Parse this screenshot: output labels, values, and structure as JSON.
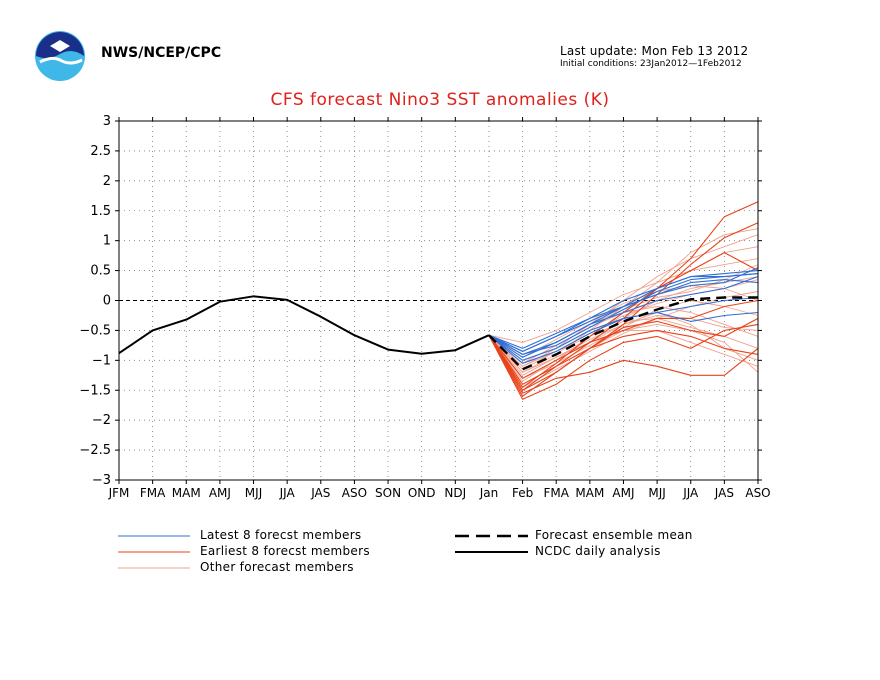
{
  "header": {
    "agency": "NWS/NCEP/CPC",
    "last_update": "Last update: Mon Feb 13 2012",
    "initial_conditions": "Initial conditions: 23Jan2012—1Feb2012",
    "logo_text": "NOAA"
  },
  "colors": {
    "title": "#e0201a",
    "latest": "#2f6fd6",
    "earliest": "#e8431a",
    "other": "#f0a28e",
    "analysis": "#000000"
  },
  "chart_data": {
    "type": "line",
    "title": "CFS forecast Nino3 SST anomalies (K)",
    "categories": [
      "JFM",
      "FMA",
      "MAM",
      "AMJ",
      "MJJ",
      "JJA",
      "JAS",
      "ASO",
      "SON",
      "OND",
      "NDJ",
      "Jan",
      "Feb",
      "FMA",
      "MAM",
      "AMJ",
      "MJJ",
      "JJA",
      "JAS",
      "ASO"
    ],
    "ylim": [
      -3,
      3
    ],
    "yticks": [
      3,
      2.5,
      2,
      1.5,
      1,
      0.5,
      0,
      -0.5,
      -1,
      -1.5,
      -2,
      -2.5,
      -3
    ],
    "grid": true,
    "legend": [
      {
        "label": "Latest 8 forecst members",
        "style": "latest"
      },
      {
        "label": "Earliest 8 forecst members",
        "style": "earliest"
      },
      {
        "label": "Other forecast members",
        "style": "other"
      },
      {
        "label": "Forecast ensemble mean",
        "style": "mean"
      },
      {
        "label": "NCDC daily analysis",
        "style": "analysis"
      }
    ],
    "analysis": {
      "name": "NCDC daily analysis",
      "x_index": [
        0,
        1,
        2,
        3,
        4,
        5,
        6,
        7,
        8,
        9,
        10,
        11
      ],
      "values": [
        -0.88,
        -0.5,
        -0.32,
        -0.02,
        0.07,
        0.01,
        -0.27,
        -0.58,
        -0.82,
        -0.89,
        -0.83,
        -0.58
      ]
    },
    "ensemble_mean": {
      "name": "Forecast ensemble mean",
      "x_index": [
        11,
        12,
        13,
        14,
        15,
        16,
        17,
        18,
        19
      ],
      "values": [
        -0.58,
        -1.15,
        -0.9,
        -0.6,
        -0.35,
        -0.15,
        0.02,
        0.05,
        0.05
      ]
    },
    "members_x_index": [
      11,
      12,
      13,
      14,
      15,
      16,
      17,
      18,
      19
    ],
    "latest_members": [
      [
        -0.58,
        -0.8,
        -0.55,
        -0.3,
        -0.1,
        0.1,
        0.3,
        0.35,
        0.3
      ],
      [
        -0.58,
        -0.85,
        -0.6,
        -0.3,
        0.0,
        0.2,
        0.4,
        0.4,
        0.45
      ],
      [
        -0.58,
        -0.9,
        -0.7,
        -0.4,
        -0.1,
        0.2,
        0.4,
        0.45,
        0.5
      ],
      [
        -0.58,
        -0.95,
        -0.7,
        -0.4,
        -0.2,
        0.0,
        0.1,
        0.2,
        0.4
      ],
      [
        -0.58,
        -1.0,
        -0.8,
        -0.5,
        -0.3,
        -0.2,
        -0.1,
        0.0,
        0.05
      ],
      [
        -0.58,
        -1.05,
        -0.85,
        -0.55,
        -0.3,
        -0.2,
        -0.35,
        -0.25,
        -0.2
      ],
      [
        -0.58,
        -0.85,
        -0.6,
        -0.35,
        -0.1,
        0.1,
        0.25,
        0.3,
        0.55
      ],
      [
        -0.58,
        -0.9,
        -0.75,
        -0.45,
        -0.15,
        0.15,
        0.35,
        0.4,
        0.45
      ]
    ],
    "earliest_members": [
      [
        -0.58,
        -1.6,
        -1.2,
        -0.8,
        -0.4,
        0.1,
        0.6,
        1.05,
        1.3
      ],
      [
        -0.58,
        -1.5,
        -1.1,
        -0.7,
        -0.3,
        0.2,
        0.7,
        1.4,
        1.65
      ],
      [
        -0.58,
        -1.55,
        -1.3,
        -1.2,
        -1.0,
        -1.1,
        -1.25,
        -1.25,
        -0.8
      ],
      [
        -0.58,
        -1.4,
        -1.1,
        -0.8,
        -0.6,
        -0.5,
        -0.6,
        -0.8,
        -0.9
      ],
      [
        -0.58,
        -1.65,
        -1.4,
        -1.0,
        -0.7,
        -0.6,
        -0.8,
        -0.5,
        -0.4
      ],
      [
        -0.58,
        -1.3,
        -1.0,
        -0.7,
        -0.5,
        -0.3,
        -0.3,
        -0.1,
        0.0
      ],
      [
        -0.58,
        -1.45,
        -1.05,
        -0.6,
        -0.2,
        0.2,
        0.5,
        0.8,
        0.5
      ],
      [
        -0.58,
        -1.5,
        -1.2,
        -0.8,
        -0.45,
        -0.35,
        -0.5,
        -0.6,
        -0.3
      ]
    ],
    "other_members": [
      [
        -0.58,
        -1.2,
        -0.9,
        -0.5,
        -0.1,
        0.3,
        0.8,
        1.1,
        1.2
      ],
      [
        -0.58,
        -1.3,
        -1.0,
        -0.6,
        -0.2,
        0.2,
        0.5,
        0.8,
        0.9
      ],
      [
        -0.58,
        -1.1,
        -0.8,
        -0.4,
        0.0,
        0.4,
        0.7,
        0.9,
        1.1
      ],
      [
        -0.58,
        -1.0,
        -0.8,
        -0.5,
        -0.3,
        0.0,
        0.2,
        0.3,
        0.4
      ],
      [
        -0.58,
        -1.4,
        -1.1,
        -0.8,
        -0.5,
        -0.4,
        -0.5,
        -0.7,
        -1.2
      ],
      [
        -0.58,
        -1.25,
        -0.95,
        -0.7,
        -0.4,
        -0.2,
        -0.4,
        -0.8,
        -1.0
      ],
      [
        -0.58,
        -0.7,
        -0.5,
        -0.2,
        0.1,
        0.3,
        0.5,
        0.6,
        0.7
      ],
      [
        -0.58,
        -1.35,
        -1.0,
        -0.7,
        -0.5,
        -0.5,
        -0.7,
        -0.9,
        -1.1
      ],
      [
        -0.58,
        -1.15,
        -0.85,
        -0.55,
        -0.25,
        -0.05,
        0.1,
        0.2,
        0.35
      ],
      [
        -0.58,
        -1.05,
        -0.75,
        -0.45,
        -0.2,
        -0.1,
        -0.2,
        -0.4,
        -0.6
      ],
      [
        -0.58,
        -1.45,
        -1.15,
        -0.85,
        -0.55,
        -0.3,
        -0.1,
        0.05,
        0.15
      ],
      [
        -0.58,
        -0.95,
        -0.65,
        -0.35,
        -0.05,
        0.15,
        0.25,
        0.2,
        0.0
      ],
      [
        -0.58,
        -1.2,
        -0.95,
        -0.65,
        -0.4,
        -0.25,
        -0.3,
        -0.45,
        -0.5
      ],
      [
        -0.58,
        -1.3,
        -1.05,
        -0.75,
        -0.45,
        -0.15,
        0.0,
        -0.1,
        -0.25
      ],
      [
        -0.58,
        -0.9,
        -0.7,
        -0.4,
        -0.15,
        0.05,
        0.15,
        0.35,
        0.6
      ],
      [
        -0.58,
        -1.1,
        -0.85,
        -0.6,
        -0.35,
        -0.3,
        -0.45,
        -0.6,
        -0.8
      ]
    ]
  }
}
